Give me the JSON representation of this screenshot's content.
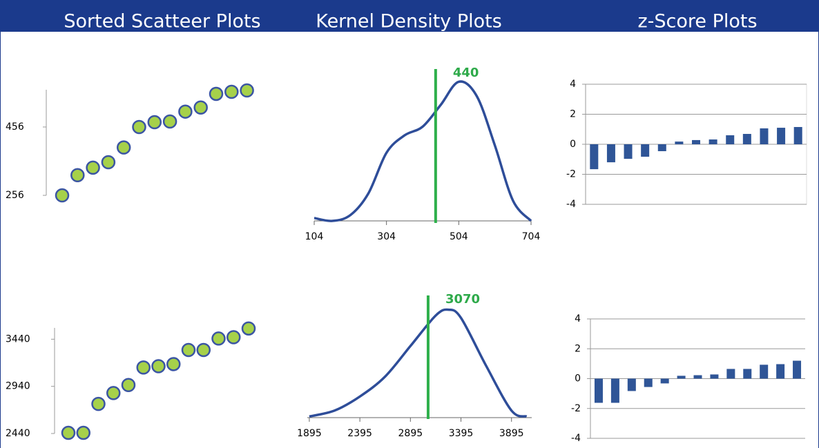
{
  "headers": [
    "Sorted Scatteer Plots",
    "Kernel Density Plots",
    "z-Score Plots"
  ],
  "chart_data": [
    {
      "type": "scatter",
      "values": [
        256,
        315,
        337,
        353,
        396,
        456,
        470,
        472,
        501,
        513,
        553,
        559,
        563
      ],
      "ylim": [
        256,
        565
      ],
      "yticks": [
        256,
        456
      ],
      "color": "#a6d14a"
    },
    {
      "type": "density",
      "x": [
        104,
        154,
        204,
        254,
        304,
        354,
        404,
        454,
        504,
        554,
        604,
        654,
        704
      ],
      "values": [
        0.02,
        0,
        0.04,
        0.19,
        0.47,
        0.59,
        0.65,
        0.8,
        0.96,
        0.86,
        0.52,
        0.14,
        0
      ],
      "xlim": [
        104,
        704
      ],
      "ylim": [
        0,
        1
      ],
      "xticks": [
        104,
        304,
        504,
        704
      ],
      "marker": 440,
      "marker_label": "440",
      "color": "#2e4d99"
    },
    {
      "type": "bar",
      "values": [
        -1.66,
        -1.2,
        -0.97,
        -0.83,
        -0.46,
        0.18,
        0.28,
        0.32,
        0.6,
        0.69,
        1.06,
        1.1,
        1.15
      ],
      "ylim": [
        -4,
        4
      ],
      "yticks": [
        4,
        2,
        0,
        -2,
        -4
      ],
      "grid": true,
      "color": "#2f5597"
    },
    {
      "type": "scatter",
      "values": [
        2447,
        2447,
        2754,
        2869,
        2954,
        3140,
        3154,
        3176,
        3326,
        3326,
        3447,
        3461,
        3554
      ],
      "ylim": [
        2440,
        3560
      ],
      "yticks": [
        3440,
        2940,
        2440
      ],
      "color": "#a6d14a"
    },
    {
      "type": "density",
      "x": [
        1895,
        2145,
        2395,
        2645,
        2895,
        3145,
        3270,
        3395,
        3645,
        3895,
        4045
      ],
      "values": [
        0.01,
        0.06,
        0.18,
        0.35,
        0.61,
        0.87,
        0.92,
        0.85,
        0.44,
        0.06,
        0.01
      ],
      "xlim": [
        1875,
        4095
      ],
      "ylim": [
        0,
        1
      ],
      "xticks": [
        1895,
        2395,
        2895,
        3395,
        3895
      ],
      "marker": 3070,
      "marker_label": "3070",
      "color": "#2e4d99"
    },
    {
      "type": "bar",
      "values": [
        -1.62,
        -1.62,
        -0.83,
        -0.56,
        -0.32,
        0.19,
        0.23,
        0.28,
        0.65,
        0.65,
        0.93,
        0.97,
        1.2
      ],
      "ylim": [
        -4,
        4
      ],
      "yticks": [
        4,
        2,
        0,
        -2,
        -4
      ],
      "grid": true,
      "color": "#2f5597"
    }
  ]
}
